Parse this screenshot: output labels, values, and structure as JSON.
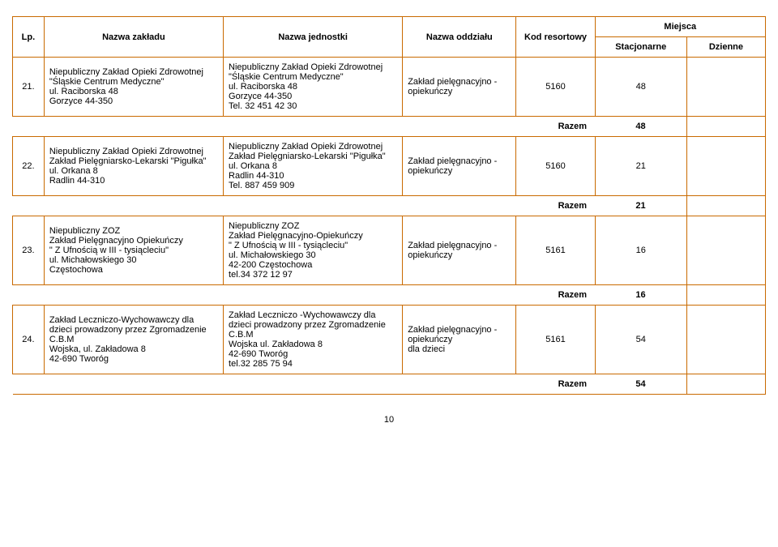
{
  "headers": {
    "lp": "Lp.",
    "zaklad": "Nazwa zakładu",
    "jednostka": "Nazwa jednostki",
    "oddzial": "Nazwa oddziału",
    "kod": "Kod resortowy",
    "miejsca": "Miejsca",
    "stacjonarne": "Stacjonarne",
    "dzienne": "Dzienne"
  },
  "rows": [
    {
      "lp": "21.",
      "zaklad": "Niepubliczny Zakład Opieki Zdrowotnej \"Śląskie Centrum Medyczne\"\nul. Raciborska 48\nGorzyce 44-350",
      "jednostka": "Niepubliczny Zakład Opieki Zdrowotnej \"Śląskie Centrum Medyczne\"\nul. Raciborska 48\nGorzyce 44-350\nTel. 32 451 42 30",
      "oddzial": "Zakład pielęgnacyjno - opiekuńczy",
      "kod": "5160",
      "stac": "48",
      "dzienne": ""
    },
    {
      "razem": true,
      "label": "Razem",
      "stac": "48",
      "dzienne": ""
    },
    {
      "lp": "22.",
      "zaklad": "Niepubliczny Zakład Opieki Zdrowotnej Zakład Pielęgniarsko-Lekarski \"Pigułka\"\nul. Orkana 8\nRadlin 44-310",
      "jednostka": "Niepubliczny Zakład Opieki Zdrowotnej Zakład Pielęgniarsko-Lekarski \"Pigułka\"\nul. Orkana 8\nRadlin 44-310\nTel. 887 459 909",
      "oddzial": "Zakład pielęgnacyjno - opiekuńczy",
      "kod": "5160",
      "stac": "21",
      "dzienne": ""
    },
    {
      "razem": true,
      "label": "Razem",
      "stac": "21",
      "dzienne": ""
    },
    {
      "lp": "23.",
      "zaklad": "Niepubliczny ZOZ\nZakład Pielęgnacyjno Opiekuńczy\n\" Z Ufnością w III - tysiącleciu\"\nul. Michałowskiego 30\nCzęstochowa",
      "jednostka": "Niepubliczny ZOZ\nZakład Pielęgnacyjno-Opiekuńczy\n\" Z Ufnością w III - tysiącleciu\"\nul. Michałowskiego 30\n42-200 Częstochowa\ntel.34 372 12 97",
      "oddzial": "Zakład pielęgnacyjno - opiekuńczy",
      "kod": "5161",
      "stac": "16",
      "dzienne": ""
    },
    {
      "razem": true,
      "label": "Razem",
      "stac": "16",
      "dzienne": ""
    },
    {
      "lp": "24.",
      "zaklad": "Zakład Leczniczo-Wychowawczy dla dzieci prowadzony przez Zgromadzenie C.B.M\nWojska, ul. Zakładowa 8\n42-690 Tworóg",
      "jednostka": "Zakład Leczniczo -Wychowawczy dla dzieci prowadzony przez Zgromadzenie C.B.M\nWojska ul. Zakładowa 8\n42-690 Tworóg\ntel.32 285 75 94",
      "oddzial": "Zakład pielęgnacyjno - opiekuńczy\ndla dzieci",
      "kod": "5161",
      "stac": "54",
      "dzienne": ""
    },
    {
      "razem": true,
      "label": "Razem",
      "stac": "54",
      "dzienne": ""
    }
  ],
  "page_number": "10"
}
